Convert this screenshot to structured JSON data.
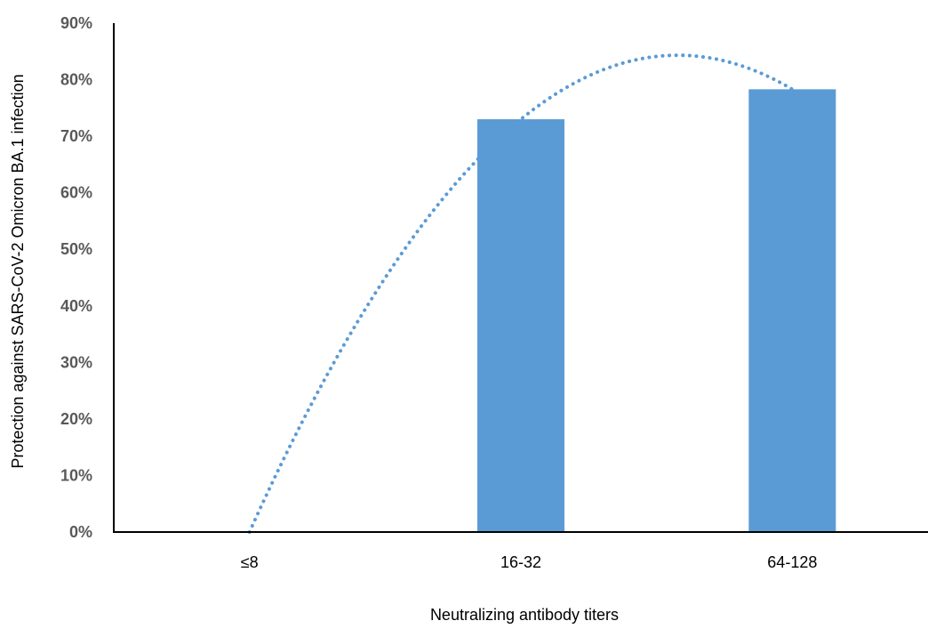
{
  "chart_data": {
    "type": "bar",
    "title": "",
    "xlabel": "Neutralizing antibody titers",
    "ylabel": "Protection against SARS-CoV-2 Omicron BA.1 infection",
    "categories": [
      "≤8",
      "16-32",
      "64-128"
    ],
    "series": [
      {
        "values": [
          0,
          0.73,
          0.783
        ],
        "color": "#5B9BD5"
      }
    ],
    "trendline": {
      "type": "polynomial",
      "style": "dotted",
      "color": "#5B9BD5",
      "points": [
        {
          "x": 0,
          "y": 0.0
        },
        {
          "x": 1,
          "y": 0.73
        },
        {
          "x": 2,
          "y": 0.783
        }
      ],
      "x_range": [
        0,
        2
      ]
    },
    "ylim": [
      0,
      0.9
    ],
    "yticks": [
      0,
      0.1,
      0.2,
      0.3,
      0.4,
      0.5,
      0.6,
      0.7,
      0.8,
      0.9
    ],
    "ytick_labels": [
      "0%",
      "10%",
      "20%",
      "30%",
      "40%",
      "50%",
      "60%",
      "70%",
      "80%",
      "90%"
    ],
    "grid": false,
    "legend": "none"
  }
}
